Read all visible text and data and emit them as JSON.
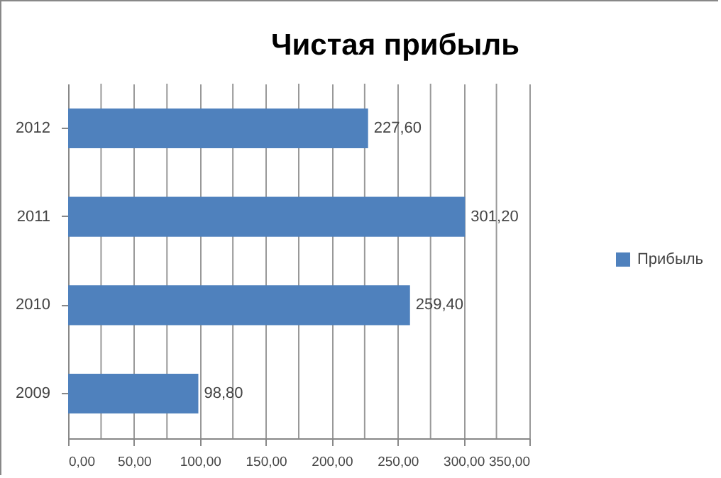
{
  "chart_data": {
    "type": "bar",
    "orientation": "horizontal",
    "title": "Чистая прибыль",
    "categories": [
      "2012",
      "2011",
      "2010",
      "2009"
    ],
    "series": [
      {
        "name": "Прибыль",
        "color": "#4f81bd",
        "values": [
          227.6,
          301.2,
          259.4,
          98.8
        ],
        "value_labels": [
          "227,60",
          "301,20",
          "259,40",
          "98,80"
        ]
      }
    ],
    "xlim": [
      0,
      350
    ],
    "xticks": [
      {
        "value": 0,
        "label": "0,00"
      },
      {
        "value": 25,
        "label": null
      },
      {
        "value": 50,
        "label": "50,00"
      },
      {
        "value": 75,
        "label": null
      },
      {
        "value": 100,
        "label": "100,00"
      },
      {
        "value": 125,
        "label": null
      },
      {
        "value": 150,
        "label": "150,00"
      },
      {
        "value": 175,
        "label": null
      },
      {
        "value": 200,
        "label": "200,00"
      },
      {
        "value": 225,
        "label": null
      },
      {
        "value": 250,
        "label": "250,00"
      },
      {
        "value": 275,
        "label": null
      },
      {
        "value": 300,
        "label": "300,00"
      },
      {
        "value": 325,
        "label": null
      },
      {
        "value": 350,
        "label": "350,00"
      }
    ],
    "grid": "x",
    "legend": "right"
  }
}
